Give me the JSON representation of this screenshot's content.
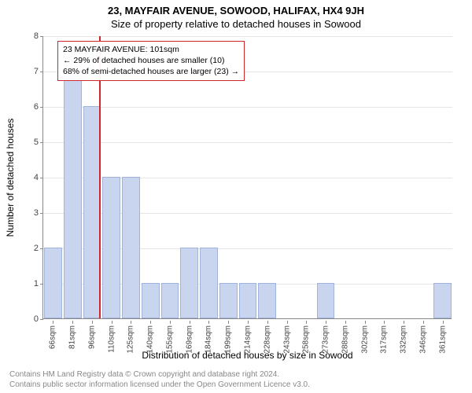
{
  "title": "23, MAYFAIR AVENUE, SOWOOD, HALIFAX, HX4 9JH",
  "subtitle": "Size of property relative to detached houses in Sowood",
  "ylabel": "Number of detached houses",
  "xlabel": "Distribution of detached houses by size in Sowood",
  "chart": {
    "type": "histogram",
    "ylim": [
      0,
      8
    ],
    "ytick_step": 1,
    "bar_fill": "#c9d5ee",
    "bar_stroke": "#9fb3dd",
    "grid_color": "#e5e5e5",
    "axis_color": "#888888",
    "background": "#ffffff",
    "marker_color": "#d1262b",
    "categories": [
      "66sqm",
      "81sqm",
      "96sqm",
      "110sqm",
      "125sqm",
      "140sqm",
      "155sqm",
      "169sqm",
      "184sqm",
      "199sqm",
      "214sqm",
      "228sqm",
      "243sqm",
      "258sqm",
      "273sqm",
      "288sqm",
      "302sqm",
      "317sqm",
      "332sqm",
      "346sqm",
      "361sqm"
    ],
    "values": [
      2,
      7,
      6,
      4,
      4,
      1,
      1,
      2,
      2,
      1,
      1,
      1,
      0,
      0,
      1,
      0,
      0,
      0,
      0,
      0,
      1
    ],
    "marker_value_sqm": 101,
    "marker_between_index": [
      2,
      3
    ],
    "bar_width_ratio": 0.92
  },
  "infobox": {
    "line1": "23 MAYFAIR AVENUE: 101sqm",
    "line2": "← 29% of detached houses are smaller (10)",
    "line3": "68% of semi-detached houses are larger (23) →"
  },
  "footer": {
    "line1": "Contains HM Land Registry data © Crown copyright and database right 2024.",
    "line2": "Contains public sector information licensed under the Open Government Licence v3.0."
  },
  "yticks": [
    "0",
    "1",
    "2",
    "3",
    "4",
    "5",
    "6",
    "7",
    "8"
  ]
}
